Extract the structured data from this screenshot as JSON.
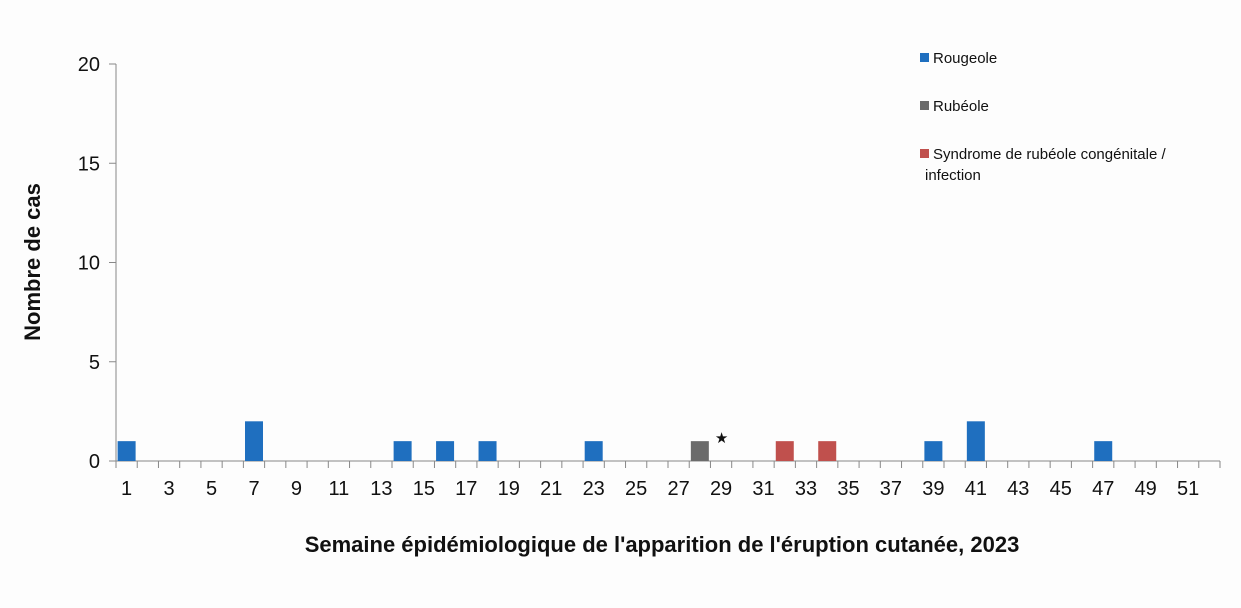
{
  "chart_data": {
    "type": "bar",
    "title": "",
    "xlabel": "Semaine épidémiologique de l'apparition de l'éruption cutanée, 2023",
    "ylabel": "Nombre de cas",
    "ylim": [
      0,
      20
    ],
    "yticks": [
      0,
      5,
      10,
      15,
      20
    ],
    "x_start": 1,
    "x_end": 52,
    "xtick_labels": [
      "1",
      "3",
      "5",
      "7",
      "9",
      "11",
      "13",
      "15",
      "17",
      "19",
      "21",
      "23",
      "25",
      "27",
      "29",
      "31",
      "33",
      "35",
      "37",
      "39",
      "41",
      "43",
      "45",
      "47",
      "49",
      "51"
    ],
    "grid": false,
    "legend_position": "top-right",
    "series": [
      {
        "name": "Rougeole",
        "color": "#1f6fbf",
        "points": [
          {
            "x": 1,
            "y": 1
          },
          {
            "x": 7,
            "y": 2
          },
          {
            "x": 14,
            "y": 1
          },
          {
            "x": 16,
            "y": 1
          },
          {
            "x": 18,
            "y": 1
          },
          {
            "x": 23,
            "y": 1
          },
          {
            "x": 39,
            "y": 1
          },
          {
            "x": 41,
            "y": 2
          },
          {
            "x": 47,
            "y": 1
          }
        ]
      },
      {
        "name": "Rubéole",
        "color": "#6b6b6b",
        "points": [
          {
            "x": 28,
            "y": 1
          }
        ]
      },
      {
        "name": "Syndrome de rubéole congénitale / infection",
        "color": "#c0504d",
        "points": [
          {
            "x": 32,
            "y": 1
          },
          {
            "x": 34,
            "y": 1
          }
        ]
      }
    ],
    "legend_lines": [
      [
        "Rougeole"
      ],
      [
        "Rubéole"
      ],
      [
        "Syndrome de rubéole congénitale /",
        "infection"
      ]
    ],
    "annotations": [
      {
        "text": "★",
        "x": 28,
        "y": 1
      }
    ]
  }
}
